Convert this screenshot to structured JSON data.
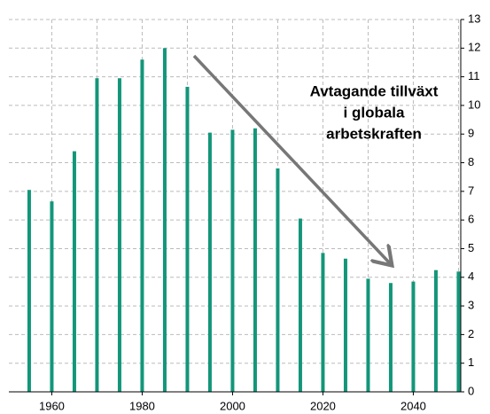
{
  "chart_data": {
    "type": "bar",
    "annotation": [
      "Avtagande tillväxt",
      "i globala",
      "arbetskraften"
    ],
    "x": [
      1955,
      1960,
      1965,
      1970,
      1975,
      1980,
      1985,
      1990,
      1995,
      2000,
      2005,
      2010,
      2015,
      2020,
      2025,
      2030,
      2035,
      2040,
      2045,
      2050
    ],
    "values": [
      7.05,
      6.65,
      8.4,
      10.95,
      10.95,
      11.6,
      12.0,
      10.65,
      9.05,
      9.15,
      9.2,
      7.8,
      6.05,
      4.85,
      4.65,
      3.95,
      3.8,
      3.85,
      4.25,
      4.2
    ],
    "color": "#13967a",
    "xlim": [
      1950.5,
      2050.5
    ],
    "xticks": [
      1960,
      1980,
      2000,
      2020,
      2040
    ],
    "x_grid": [
      1960,
      1970,
      1980,
      1990,
      2000,
      2010,
      2020,
      2030,
      2040,
      2050
    ],
    "ylim": [
      0,
      13
    ],
    "yticks": [
      0,
      1,
      2,
      3,
      4,
      5,
      6,
      7,
      8,
      9,
      10,
      11,
      12,
      13
    ],
    "y_axis_side": "right",
    "grid": true
  }
}
